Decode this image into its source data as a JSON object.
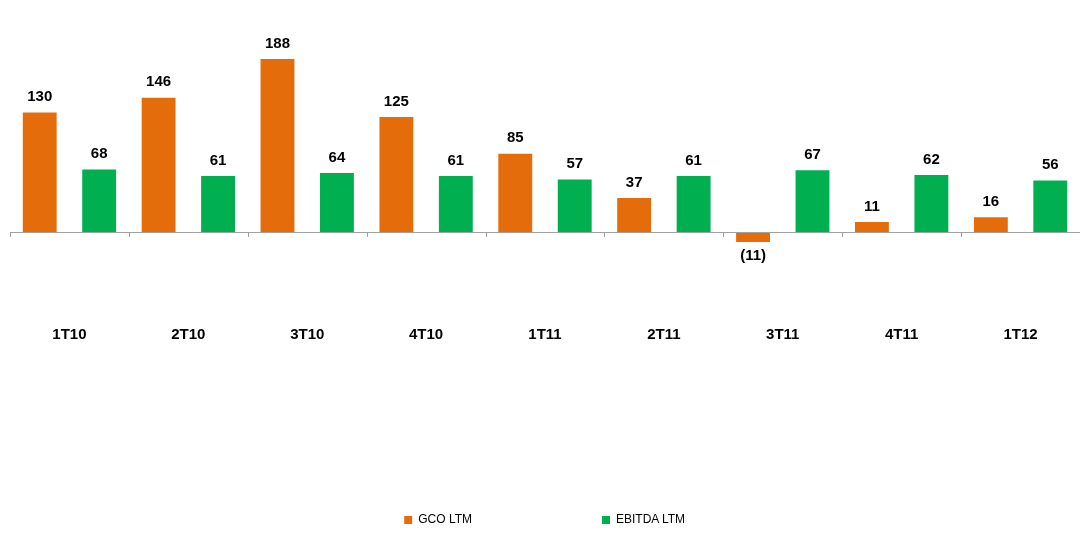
{
  "chart_data": {
    "type": "bar",
    "categories": [
      "1T10",
      "2T10",
      "3T10",
      "4T10",
      "1T11",
      "2T11",
      "3T11",
      "4T11",
      "1T12"
    ],
    "series": [
      {
        "name": "GCO LTM",
        "color": "#e46c0a",
        "values": [
          130,
          146,
          188,
          125,
          85,
          37,
          -11,
          11,
          16
        ],
        "value_labels": [
          "130",
          "146",
          "188",
          "125",
          "85",
          "37",
          "(11)",
          "11",
          "16"
        ]
      },
      {
        "name": "EBITDA LTM",
        "color": "#00b050",
        "values": [
          68,
          61,
          64,
          61,
          57,
          61,
          67,
          62,
          56
        ],
        "value_labels": [
          "68",
          "61",
          "64",
          "61",
          "57",
          "61",
          "67",
          "62",
          "56"
        ]
      }
    ],
    "legend": "bottom",
    "grid": false
  }
}
